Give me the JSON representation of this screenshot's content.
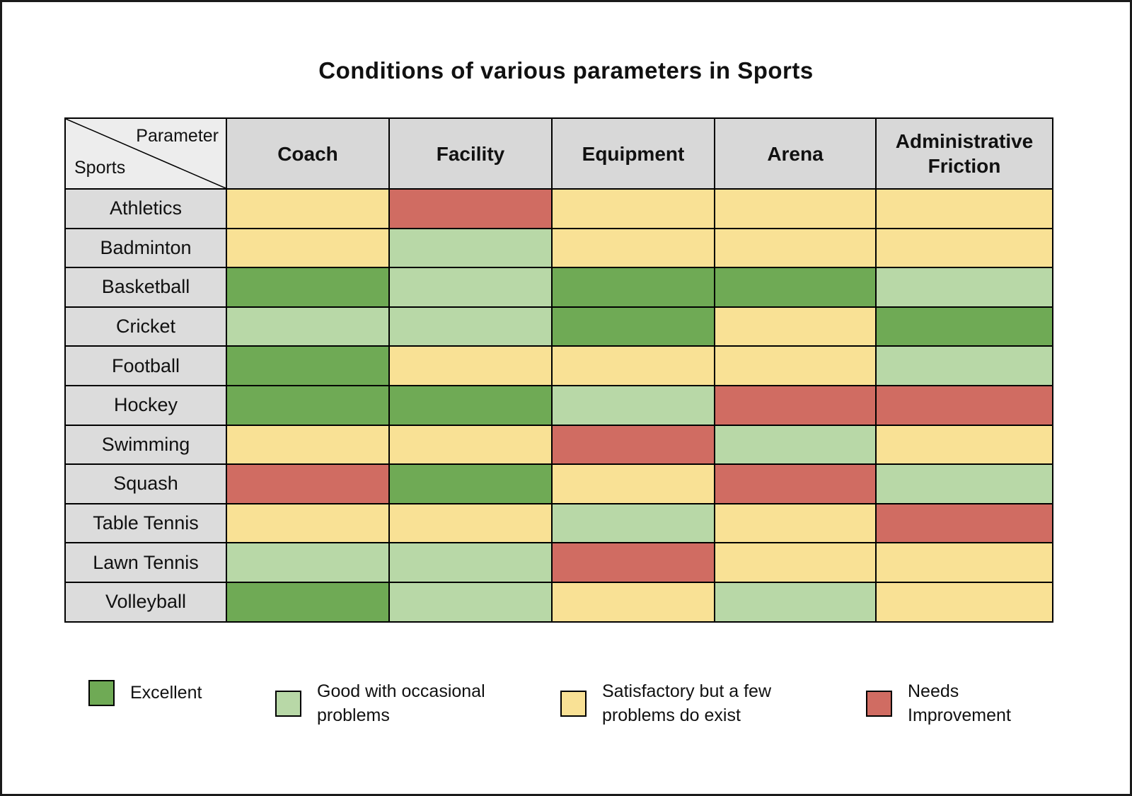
{
  "title": "Conditions of various parameters in Sports",
  "corner": {
    "top": "Parameter",
    "bottom": "Sports"
  },
  "colors": {
    "header_bg": "#d8d8d8",
    "corner_bg": "#ededed",
    "row_label_bg": "#dcdcdc",
    "border": "#000000"
  },
  "chart_data": {
    "type": "heatmap",
    "title": "Conditions of various parameters in Sports",
    "columns": [
      "Coach",
      "Facility",
      "Equipment",
      "Arena",
      "Administrative Friction"
    ],
    "rows": [
      "Athletics",
      "Badminton",
      "Basketball",
      "Cricket",
      "Football",
      "Hockey",
      "Swimming",
      "Squash",
      "Table Tennis",
      "Lawn Tennis",
      "Volleyball"
    ],
    "values": [
      [
        "satisfactory",
        "needs_improvement",
        "satisfactory",
        "satisfactory",
        "satisfactory"
      ],
      [
        "satisfactory",
        "good",
        "satisfactory",
        "satisfactory",
        "satisfactory"
      ],
      [
        "excellent",
        "good",
        "excellent",
        "excellent",
        "good"
      ],
      [
        "good",
        "good",
        "excellent",
        "satisfactory",
        "excellent"
      ],
      [
        "excellent",
        "satisfactory",
        "satisfactory",
        "satisfactory",
        "good"
      ],
      [
        "excellent",
        "excellent",
        "good",
        "needs_improvement",
        "needs_improvement"
      ],
      [
        "satisfactory",
        "satisfactory",
        "needs_improvement",
        "good",
        "satisfactory"
      ],
      [
        "needs_improvement",
        "excellent",
        "satisfactory",
        "needs_improvement",
        "good"
      ],
      [
        "satisfactory",
        "satisfactory",
        "good",
        "satisfactory",
        "needs_improvement"
      ],
      [
        "good",
        "good",
        "needs_improvement",
        "satisfactory",
        "satisfactory"
      ],
      [
        "excellent",
        "good",
        "satisfactory",
        "good",
        "satisfactory"
      ]
    ],
    "rating_colors": {
      "excellent": "#6faa55",
      "good": "#b8d8a7",
      "satisfactory": "#f9e195",
      "needs_improvement": "#d06c62"
    },
    "legend": [
      {
        "key": "excellent",
        "label": "Excellent"
      },
      {
        "key": "good",
        "label": "Good with occasional problems"
      },
      {
        "key": "satisfactory",
        "label": "Satisfactory but a few problems do exist"
      },
      {
        "key": "needs_improvement",
        "label": "Needs Improvement"
      }
    ]
  }
}
